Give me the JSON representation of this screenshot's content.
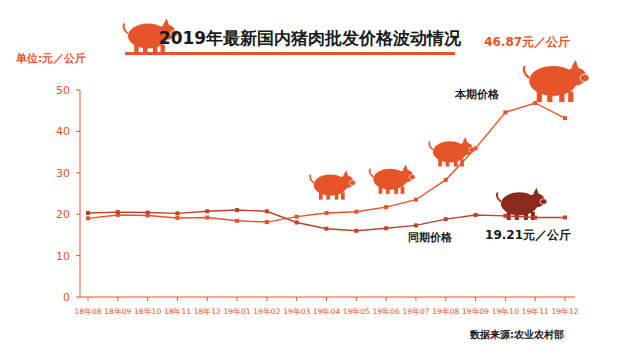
{
  "chart_data": {
    "type": "line",
    "title": "2019年最新国内猪肉批发价格波动情况",
    "y_label": "单位:元／公斤",
    "source": "数据来源:农业农村部",
    "annotations": [
      "46.87元／公斤",
      "19.21元／公斤"
    ],
    "categories": [
      "18年08",
      "18年09",
      "18年10",
      "18年11",
      "18年12",
      "19年01",
      "19年02",
      "19年03",
      "19年04",
      "19年05",
      "19年06",
      "19年07",
      "19年08",
      "19年09",
      "19年10",
      "19年11",
      "19年12"
    ],
    "series": [
      {
        "name": "本期价格",
        "color": "#e8542a",
        "marker": "square",
        "values": [
          19.0,
          19.8,
          19.7,
          19.1,
          19.2,
          18.4,
          18.1,
          19.4,
          20.3,
          20.6,
          21.7,
          23.5,
          28.3,
          35.9,
          44.6,
          46.87,
          43.2
        ]
      },
      {
        "name": "同期价格",
        "color": "#c0412a",
        "marker": "square",
        "values": [
          20.3,
          20.5,
          20.4,
          20.2,
          20.7,
          21.0,
          20.7,
          18.0,
          16.5,
          16.0,
          16.6,
          17.3,
          18.8,
          19.8,
          19.6,
          19.2,
          19.21
        ]
      }
    ],
    "ylim": [
      0,
      50
    ],
    "yticks": [
      0,
      10,
      20,
      30,
      40,
      50
    ],
    "grid": false
  }
}
